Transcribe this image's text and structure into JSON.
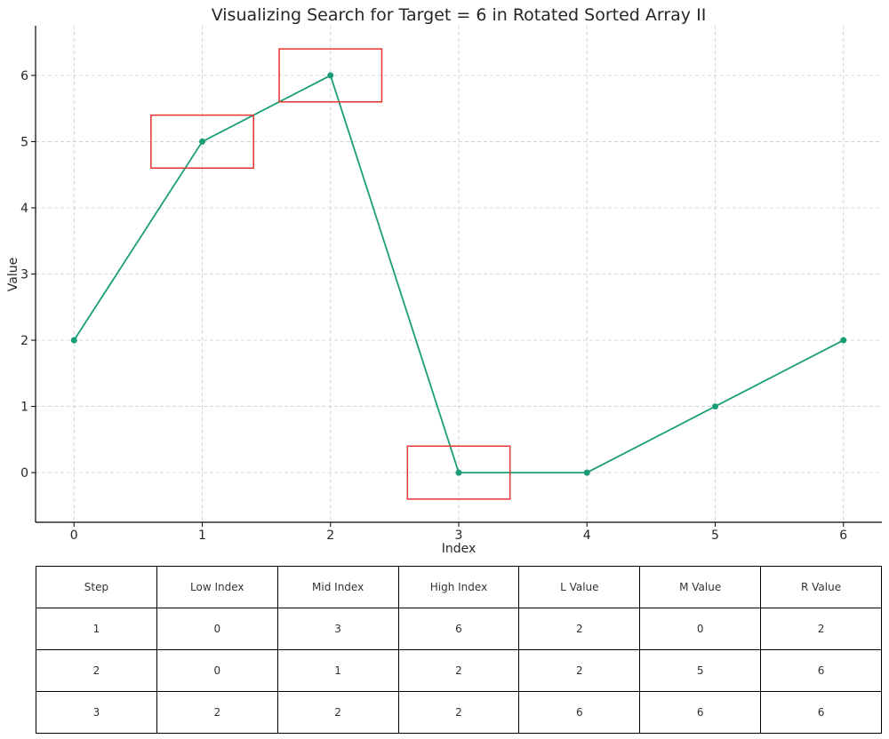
{
  "chart_data": {
    "type": "line",
    "title": "Visualizing Search for Target = 6 in Rotated Sorted Array II",
    "xlabel": "Index",
    "ylabel": "Value",
    "xlim": [
      -0.3,
      6.3
    ],
    "ylim": [
      -0.75,
      6.75
    ],
    "xticks": [
      0,
      1,
      2,
      3,
      4,
      5,
      6
    ],
    "yticks": [
      0,
      1,
      2,
      3,
      4,
      5,
      6
    ],
    "grid": true,
    "series": [
      {
        "x": [
          0,
          1,
          2,
          3,
          4,
          5,
          6
        ],
        "values": [
          2,
          5,
          6,
          0,
          0,
          1,
          2
        ],
        "color": "#1a9e77"
      }
    ],
    "highlight_boxes": [
      {
        "x": 1,
        "y": 5,
        "half_width": 0.4,
        "half_height": 0.4
      },
      {
        "x": 2,
        "y": 6,
        "half_width": 0.4,
        "half_height": 0.4
      },
      {
        "x": 3,
        "y": 0,
        "half_width": 0.4,
        "half_height": 0.4
      }
    ],
    "highlight_color": "#e8342b"
  },
  "table": {
    "headers": [
      "Step",
      "Low Index",
      "Mid Index",
      "High Index",
      "L Value",
      "M Value",
      "R Value"
    ],
    "rows": [
      [
        "1",
        "0",
        "3",
        "6",
        "2",
        "0",
        "2"
      ],
      [
        "2",
        "0",
        "1",
        "2",
        "2",
        "5",
        "6"
      ],
      [
        "3",
        "2",
        "2",
        "2",
        "6",
        "6",
        "6"
      ]
    ]
  }
}
